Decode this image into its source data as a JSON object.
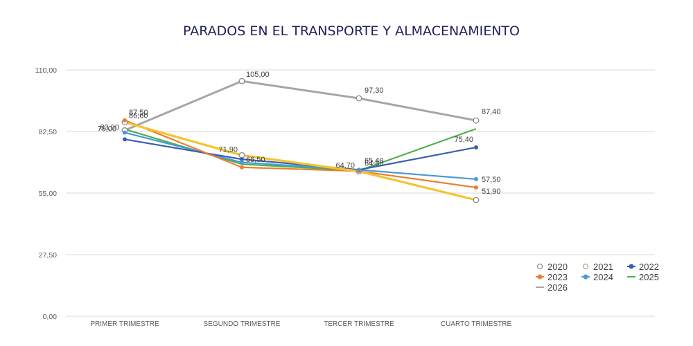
{
  "chart_data": {
    "type": "line",
    "title": "PARADOS EN EL TRANSPORTE Y ALMACENAMIENTO",
    "xlabel": "",
    "ylabel": "",
    "categories": [
      "PRIMER TRIMESTRE",
      "SEGUNDO TRIMESTRE",
      "TERCER TRIMESTRE",
      "CUARTO TRIMESTRE"
    ],
    "ylim": [
      0,
      110
    ],
    "yticks": [
      "0,00",
      "27,50",
      "55,00",
      "82,50",
      "110,00"
    ],
    "ytick_values": [
      0,
      27.5,
      55,
      82.5,
      110
    ],
    "grid": true,
    "legend_position": "bottom-right",
    "series": [
      {
        "name": "2020",
        "color": "#a6a6a6",
        "marker": "open-circle",
        "values": [
          83.0,
          105.0,
          97.3,
          87.4
        ],
        "labels": [
          "83,00",
          "105,00",
          "97,30",
          "87,40"
        ]
      },
      {
        "name": "2021",
        "color": "#f4c430",
        "marker": "open-circle",
        "values": [
          86.6,
          71.9,
          64.7,
          51.9
        ],
        "labels": [
          "86,60",
          "71,90",
          "64,70",
          "51,90"
        ]
      },
      {
        "name": "2022",
        "color": "#3a5fb0",
        "marker": "dot",
        "values": [
          79.0,
          70.1,
          65.4,
          75.4
        ],
        "labels": [
          "79,00",
          "",
          "65,40",
          "75,40"
        ]
      },
      {
        "name": "2023",
        "color": "#ed7d31",
        "marker": "dot",
        "values": [
          87.5,
          66.5,
          64.8,
          57.5
        ],
        "labels": [
          "87,50",
          "66,50",
          "64,80",
          "57,50"
        ]
      },
      {
        "name": "2024",
        "color": "#4a9ad6",
        "marker": "dot",
        "values": [
          82.0,
          68.7,
          65.4,
          61.2
        ],
        "labels": [
          "",
          "",
          "",
          ""
        ]
      },
      {
        "name": "2025",
        "color": "#4caf50",
        "marker": "line",
        "values": [
          83.5,
          67.9,
          65.0,
          83.7
        ],
        "labels": [
          "",
          "",
          "",
          ""
        ]
      },
      {
        "name": "2026",
        "color": "#a6a6a6",
        "marker": "line",
        "values": [],
        "labels": []
      }
    ]
  }
}
